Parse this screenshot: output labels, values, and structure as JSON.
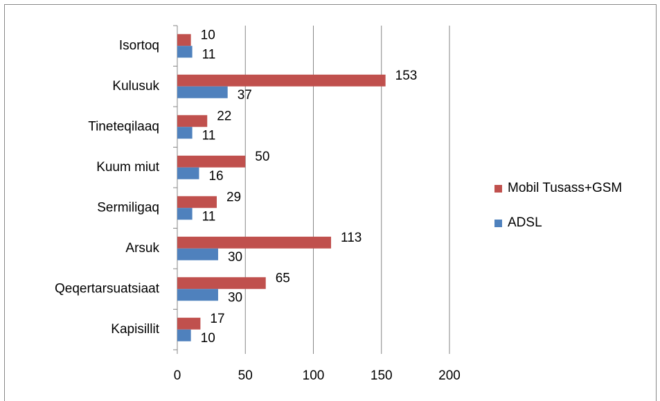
{
  "chart_data": {
    "type": "bar",
    "orientation": "horizontal",
    "categories": [
      "Isortoq",
      "Kulusuk",
      "Tineteqilaaq",
      "Kuum miut",
      "Sermiligaq",
      "Arsuk",
      "Qeqertarsuatsiaat",
      "Kapisillit"
    ],
    "series": [
      {
        "name": "Mobil Tusass+GSM",
        "color": "#c0504d",
        "values": [
          10,
          153,
          22,
          50,
          29,
          113,
          65,
          17
        ]
      },
      {
        "name": "ADSL",
        "color": "#4f81bd",
        "values": [
          11,
          37,
          11,
          16,
          11,
          30,
          30,
          10
        ]
      }
    ],
    "xlim": [
      0,
      200
    ],
    "xticks": [
      0,
      50,
      100,
      150,
      200
    ],
    "grid": true,
    "legend": "right"
  }
}
